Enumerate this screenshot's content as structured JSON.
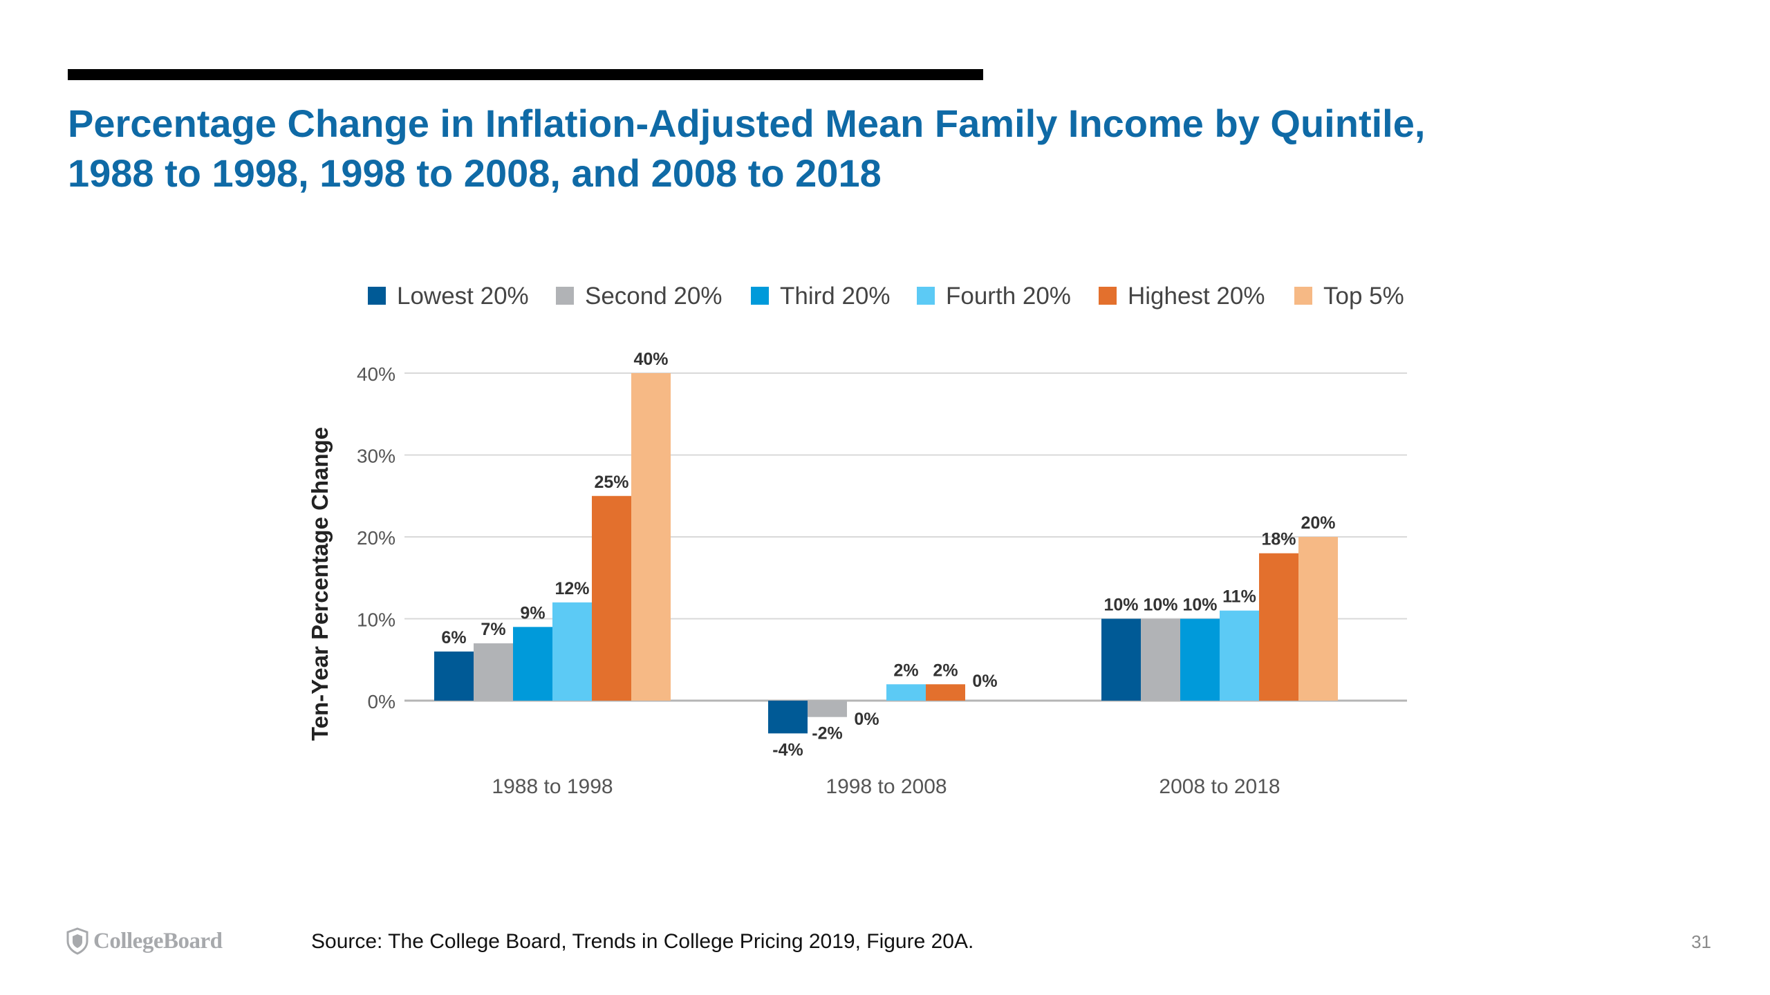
{
  "slide": {
    "title_line1": "Percentage Change in Inflation-Adjusted Mean Family Income by Quintile,",
    "title_line2": "1988 to 1998, 1998 to 2008, and 2008 to 2018",
    "source": "Source: The College Board, Trends in College Pricing 2019, Figure 20A.",
    "page_number": "31",
    "logo_text": "CollegeBoard"
  },
  "colors": {
    "title": "#0f6aa6",
    "Lowest 20%": "#005a96",
    "Second 20%": "#b1b3b6",
    "Third 20%": "#009ada",
    "Fourth 20%": "#5ccaf5",
    "Highest 20%": "#e3702d",
    "Top 5%": "#f6b985"
  },
  "chart_data": {
    "type": "bar",
    "title": "",
    "xlabel": "",
    "ylabel": "Ten-Year Percentage Change",
    "ylim": [
      -5,
      40
    ],
    "yticks": [
      0,
      10,
      20,
      30,
      40
    ],
    "ytick_labels": [
      "0%",
      "10%",
      "20%",
      "30%",
      "40%"
    ],
    "grid": true,
    "legend_position": "top",
    "categories": [
      "1988 to 1998",
      "1998 to 2008",
      "2008 to 2018"
    ],
    "series": [
      {
        "name": "Lowest 20%",
        "values": [
          6,
          -4,
          10
        ],
        "labels": [
          "6%",
          "-4%",
          "10%"
        ]
      },
      {
        "name": "Second 20%",
        "values": [
          7,
          -2,
          10
        ],
        "labels": [
          "7%",
          "-2%",
          "10%"
        ]
      },
      {
        "name": "Third 20%",
        "values": [
          9,
          0,
          10
        ],
        "labels": [
          "9%",
          "0%",
          "10%"
        ]
      },
      {
        "name": "Fourth 20%",
        "values": [
          12,
          2,
          11
        ],
        "labels": [
          "12%",
          "2%",
          "11%"
        ]
      },
      {
        "name": "Highest 20%",
        "values": [
          25,
          2,
          18
        ],
        "labels": [
          "25%",
          "2%",
          "18%"
        ]
      },
      {
        "name": "Top 5%",
        "values": [
          40,
          0,
          20
        ],
        "labels": [
          "40%",
          "0%",
          "20%"
        ]
      }
    ]
  }
}
